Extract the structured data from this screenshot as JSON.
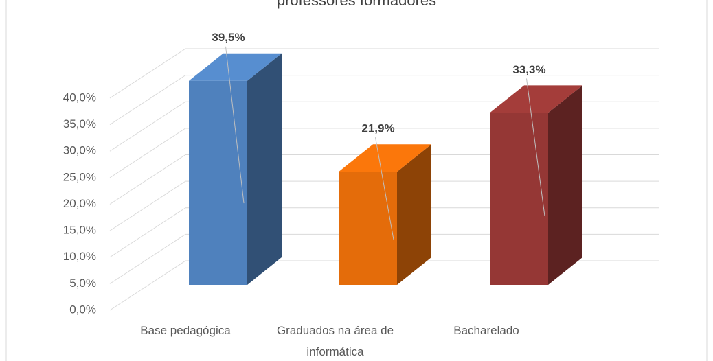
{
  "chart_data": {
    "type": "bar3d",
    "title": "professores formadores",
    "categories": [
      "Base pedagógica",
      "Graduados na área de informática",
      "Bacharelado"
    ],
    "values": [
      39.5,
      21.9,
      33.3
    ],
    "value_labels": [
      "39,5%",
      "21,9%",
      "33,3%"
    ],
    "colors": [
      "#4f81bd",
      "#e46c0a",
      "#953735"
    ],
    "ylim": [
      0,
      40
    ],
    "yticks": [
      {
        "value": 0,
        "label": "0,0%"
      },
      {
        "value": 5,
        "label": "5,0%"
      },
      {
        "value": 10,
        "label": "10,0%"
      },
      {
        "value": 15,
        "label": "15,0%"
      },
      {
        "value": 20,
        "label": "20,0%"
      },
      {
        "value": 25,
        "label": "25,0%"
      },
      {
        "value": 30,
        "label": "30,0%"
      },
      {
        "value": 35,
        "label": "35,0%"
      },
      {
        "value": 40,
        "label": "40,0%"
      }
    ],
    "grid": true
  }
}
